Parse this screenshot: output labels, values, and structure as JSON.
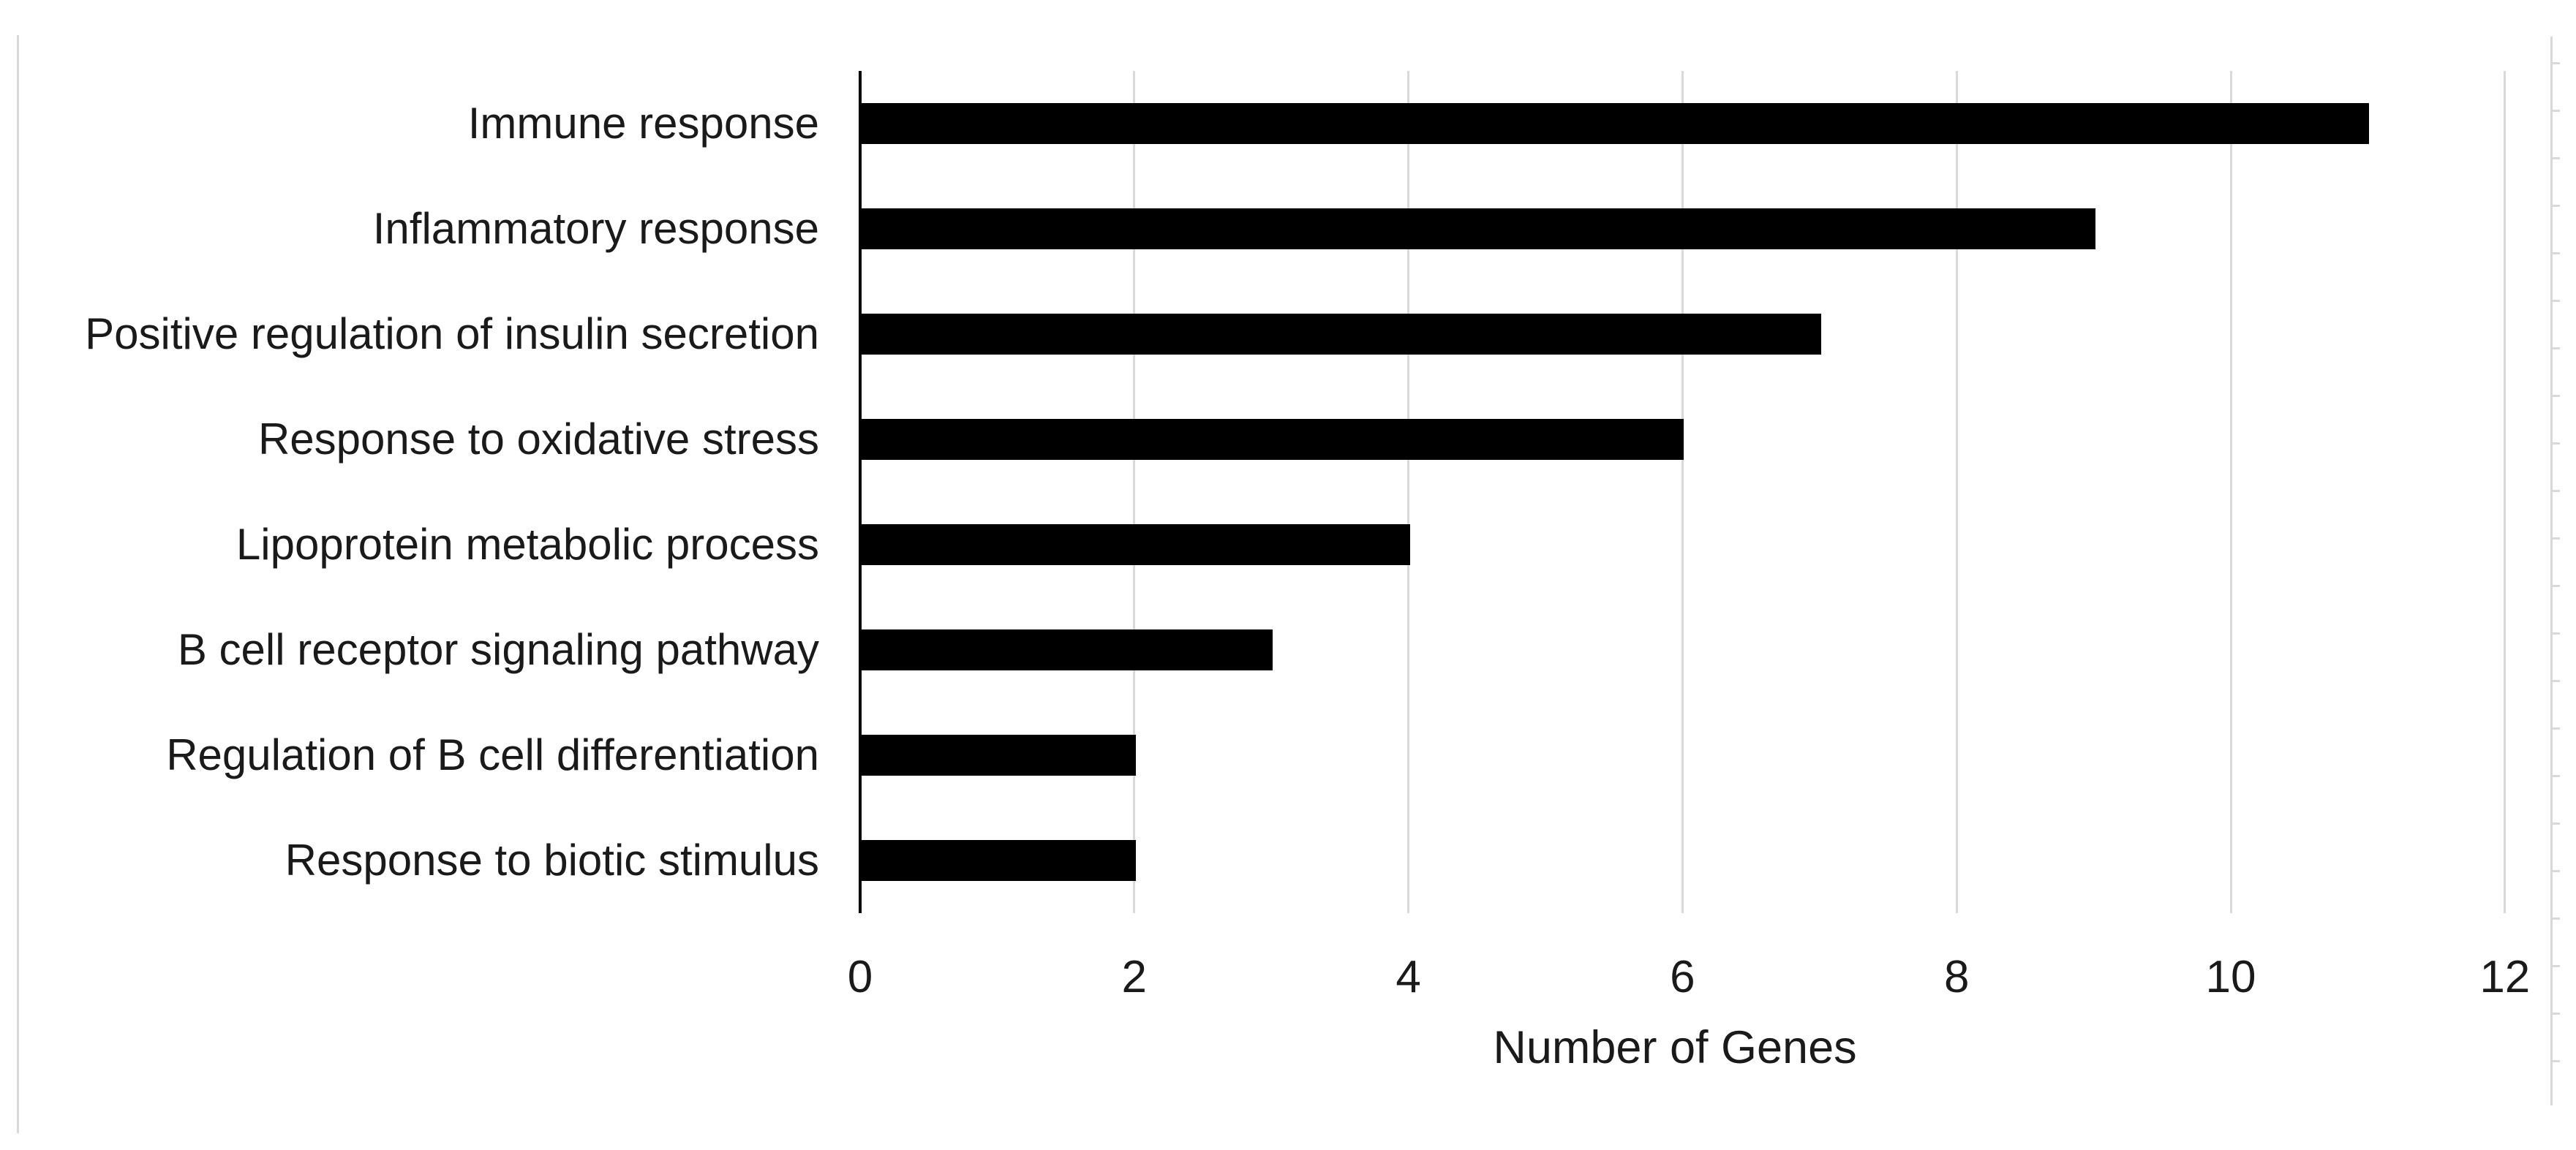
{
  "chart_data": {
    "type": "bar",
    "orientation": "horizontal",
    "title": "",
    "categories": [
      "Immune response",
      "Inflammatory response",
      "Positive regulation of insulin secretion",
      "Response to oxidative stress",
      "Lipoprotein metabolic process",
      "B cell receptor signaling pathway",
      "Regulation of B cell differentiation",
      "Response to biotic stimulus"
    ],
    "values": [
      11,
      9,
      7,
      6,
      4,
      3,
      2,
      2
    ],
    "xlabel": "Number of Genes",
    "ylabel": "",
    "x_ticks": [
      0,
      2,
      4,
      6,
      8,
      10,
      12
    ],
    "xlim": [
      0,
      12
    ],
    "grid": true,
    "legend": "none",
    "colors": {
      "bar": "#000000",
      "gridline": "#d9d9d9",
      "axis_line": "#000000",
      "text": "#1a1a1a",
      "background": "#ffffff",
      "edge_line": "#d9d9d9"
    }
  }
}
